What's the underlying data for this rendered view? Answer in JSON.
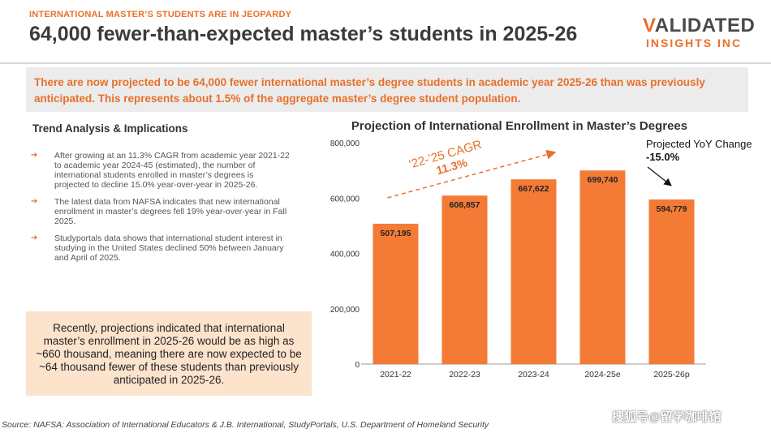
{
  "header": {
    "kicker": "INTERNATIONAL MASTER’S STUDENTS ARE IN JEOPARDY",
    "title": "64,000 fewer-than-expected master’s students in 2025-26",
    "logo_line1": "VALIDATED",
    "logo_line2": "INSIGHTS INC"
  },
  "banner": {
    "text": "There are now projected to be 64,000 fewer international master’s degree students in academic year 2025-26 than was previously anticipated. This represents about 1.5% of the aggregate master’s degree student population."
  },
  "trend": {
    "title": "Trend Analysis & Implications",
    "bullets": [
      "After growing at an 11.3% CAGR from academic year 2021-22 to academic year 2024-45 (estimated), the number of international students enrolled in master’s degrees is projected to decline 15.0% year-over-year in 2025-26.",
      "The latest data from NAFSA indicates that new international enrollment in master’s degrees fell 19% year-over-year in Fall 2025.",
      "Studyportals data shows that international student interest in studying in the United States declined 50% between January and April of 2025."
    ]
  },
  "callout": {
    "text": "Recently, projections indicated that international master’s enrollment in 2025-26 would be as high as ~660 thousand, meaning there are now expected to be ~64 thousand fewer of these students than previously anticipated in 2025-26."
  },
  "source": "Source: NAFSA: Association of International Educators & J.B. International,  StudyPortals, U.S. Department of Homeland Security",
  "watermark": "搜狐号@留学咖啡馆",
  "colors": {
    "accent": "#e8702a",
    "bar": "#f47b35"
  },
  "chart_data": {
    "type": "bar",
    "title": "Projection of International Enrollment in Master’s Degrees",
    "categories": [
      "2021-22",
      "2022-23",
      "2023-24",
      "2024-25e",
      "2025-26p"
    ],
    "values": [
      507195,
      608857,
      667622,
      699740,
      594779
    ],
    "value_labels": [
      "507,195",
      "608,857",
      "667,622",
      "699,740",
      "594,779"
    ],
    "ylim": [
      0,
      800000
    ],
    "yticks": [
      0,
      200000,
      400000,
      600000,
      800000
    ],
    "ytick_labels": [
      "0",
      "200,000",
      "400,000",
      "600,000",
      "800,000"
    ],
    "grid": false,
    "annotations": {
      "cagr_label": "‘22-’25 CAGR",
      "cagr_value": "11.3%",
      "yoy_label": "Projected YoY Change",
      "yoy_value": "-15.0%"
    }
  }
}
